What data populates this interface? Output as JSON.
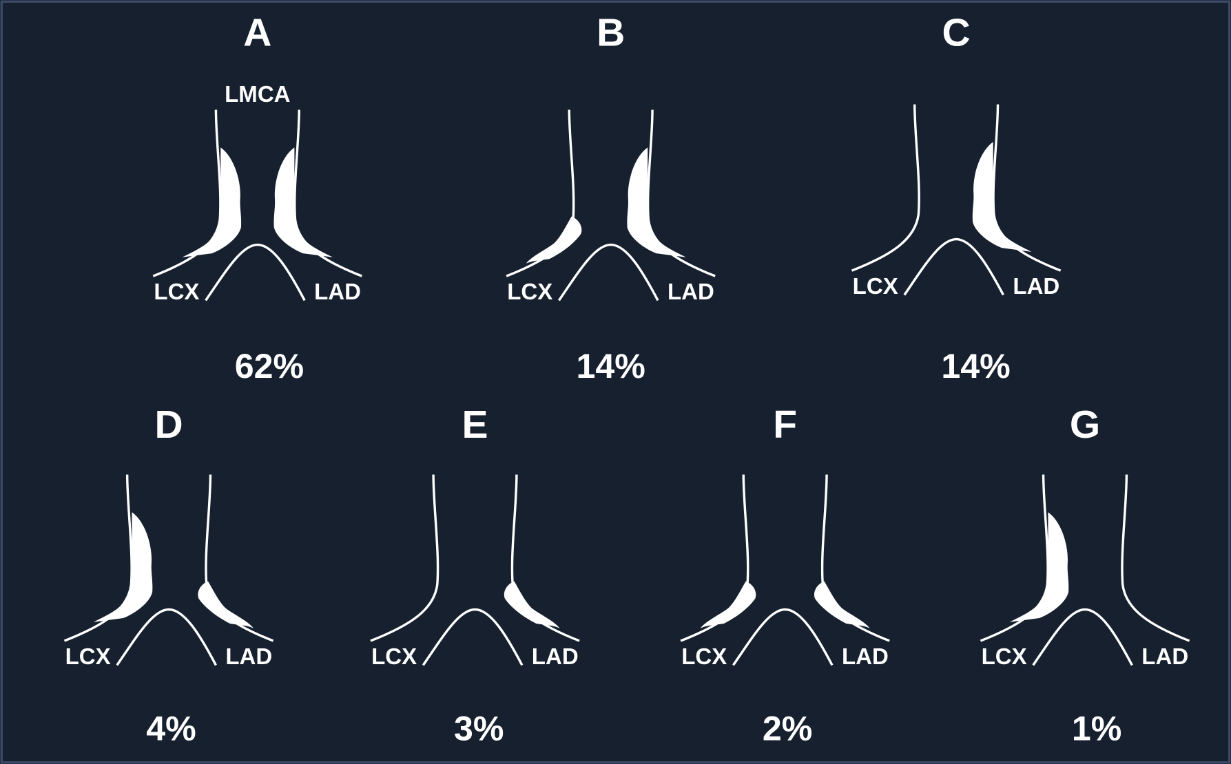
{
  "panels": [
    {
      "letter": "A",
      "top_label": "LMCA",
      "left_label": "LCX",
      "right_label": "LAD",
      "percent": "62%"
    },
    {
      "letter": "B",
      "left_label": "LCX",
      "right_label": "LAD",
      "percent": "14%"
    },
    {
      "letter": "C",
      "left_label": "LCX",
      "right_label": "LAD",
      "percent": "14%"
    },
    {
      "letter": "D",
      "left_label": "LCX",
      "right_label": "LAD",
      "percent": "4%"
    },
    {
      "letter": "E",
      "left_label": "LCX",
      "right_label": "LAD",
      "percent": "3%"
    },
    {
      "letter": "F",
      "left_label": "LCX",
      "right_label": "LAD",
      "percent": "2%"
    },
    {
      "letter": "G",
      "left_label": "LCX",
      "right_label": "LAD",
      "percent": "1%"
    }
  ]
}
